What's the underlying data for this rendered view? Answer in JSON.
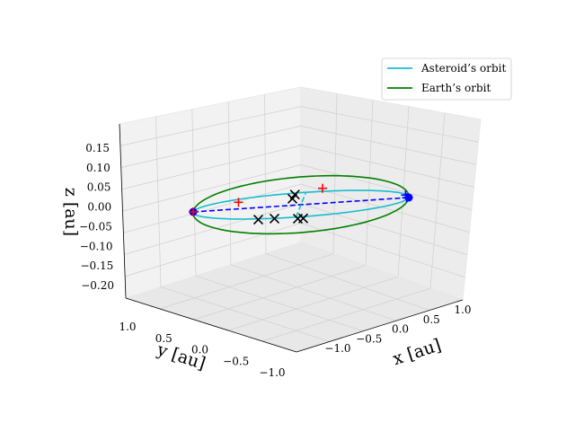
{
  "chart_data": {
    "type": "line",
    "projection": "3d",
    "xlabel": "x [au]",
    "ylabel": "y [au]",
    "zlabel": "z [au]",
    "x_ticks": [
      "−1.0",
      "−0.5",
      "0.0",
      "0.5",
      "1.0"
    ],
    "y_ticks": [
      "1.0",
      "0.5",
      "0.0",
      "−0.5",
      "−1.0"
    ],
    "z_ticks": [
      "0.15",
      "0.10",
      "0.05",
      "0.00",
      "−0.05",
      "−0.10",
      "−0.15",
      "−0.20"
    ],
    "xlim": [
      -1.2,
      1.2
    ],
    "ylim": [
      -1.2,
      1.2
    ],
    "zlim": [
      -0.22,
      0.19
    ],
    "grid": true,
    "legend_placement": "top-right",
    "series": [
      {
        "name": "Asteroid’s orbit",
        "color": "#17becf",
        "style": "solid"
      },
      {
        "name": "Earth’s orbit",
        "color": "#008000",
        "style": "solid"
      }
    ],
    "sun_position": [
      0,
      0,
      0
    ],
    "extra_lines": [
      {
        "color": "#0000ff",
        "style": "dashed",
        "from": [
          -1.0,
          0.0,
          0.0
        ],
        "to": [
          1.0,
          0.0,
          0.0
        ]
      },
      {
        "color": "#17becf",
        "style": "dashed",
        "from": [
          0.0,
          1.1,
          0.15
        ],
        "to": [
          0.0,
          -1.1,
          -0.15
        ]
      }
    ],
    "circle_points": [
      {
        "color": "#0000ff",
        "pos": [
          -1.0,
          0.0,
          0.0
        ]
      },
      {
        "color": "#0000ff",
        "pos": [
          1.0,
          0.0,
          0.0
        ]
      }
    ],
    "plus_points": [
      {
        "color": "#ff0000",
        "pos": [
          -1.0,
          0.0,
          0.0
        ]
      },
      {
        "color": "#0000ff",
        "pos": [
          0.98,
          0.0,
          0.0
        ]
      },
      {
        "color": "#0000ff",
        "pos": [
          0.97,
          0.0,
          0.02
        ]
      },
      {
        "color": "#ff0000",
        "pos": [
          -0.6,
          -0.5,
          -0.06
        ]
      },
      {
        "color": "#ff0000",
        "pos": [
          0.15,
          -1.2,
          -0.15
        ]
      }
    ],
    "x_points": [
      {
        "color": "#000000",
        "pos": [
          -0.35,
          1.1,
          0.15
        ]
      },
      {
        "color": "#000000",
        "pos": [
          -0.2,
          1.1,
          0.15
        ]
      },
      {
        "color": "#000000",
        "pos": [
          0.0,
          0.7,
          0.05
        ]
      },
      {
        "color": "#000000",
        "pos": [
          0.05,
          0.7,
          0.05
        ]
      },
      {
        "color": "#000000",
        "pos": [
          -0.1,
          -0.5,
          -0.06
        ]
      },
      {
        "color": "#000000",
        "pos": [
          -0.1,
          -1.05,
          -0.15
        ]
      }
    ]
  }
}
